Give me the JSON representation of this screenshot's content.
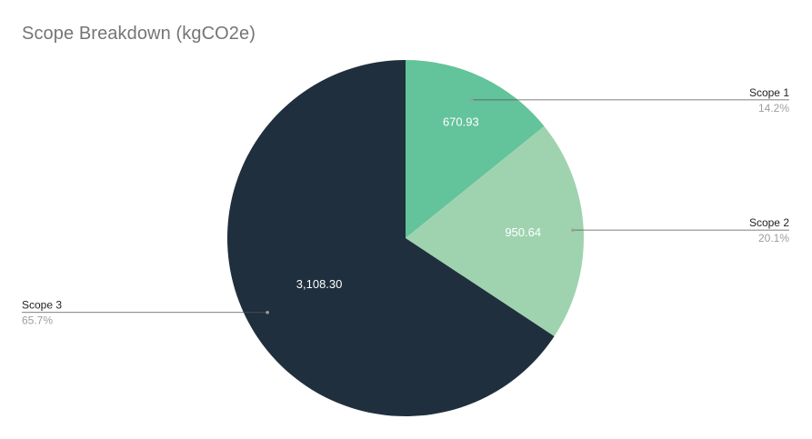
{
  "chart_data": {
    "type": "pie",
    "title": "Scope Breakdown (kgCO2e)",
    "slices": [
      {
        "label": "Scope 1",
        "value": 670.93,
        "value_label": "670.93",
        "percent_label": "14.2%",
        "color": "#63c39b"
      },
      {
        "label": "Scope 2",
        "value": 950.64,
        "value_label": "950.64",
        "percent_label": "20.1%",
        "color": "#9fd3b0"
      },
      {
        "label": "Scope 3",
        "value": 3108.3,
        "value_label": "3,108.30",
        "percent_label": "65.7%",
        "color": "#1f2f3d"
      }
    ],
    "start_angle": "12 o'clock",
    "direction": "clockwise",
    "legend_placement": "leader-line labels"
  }
}
